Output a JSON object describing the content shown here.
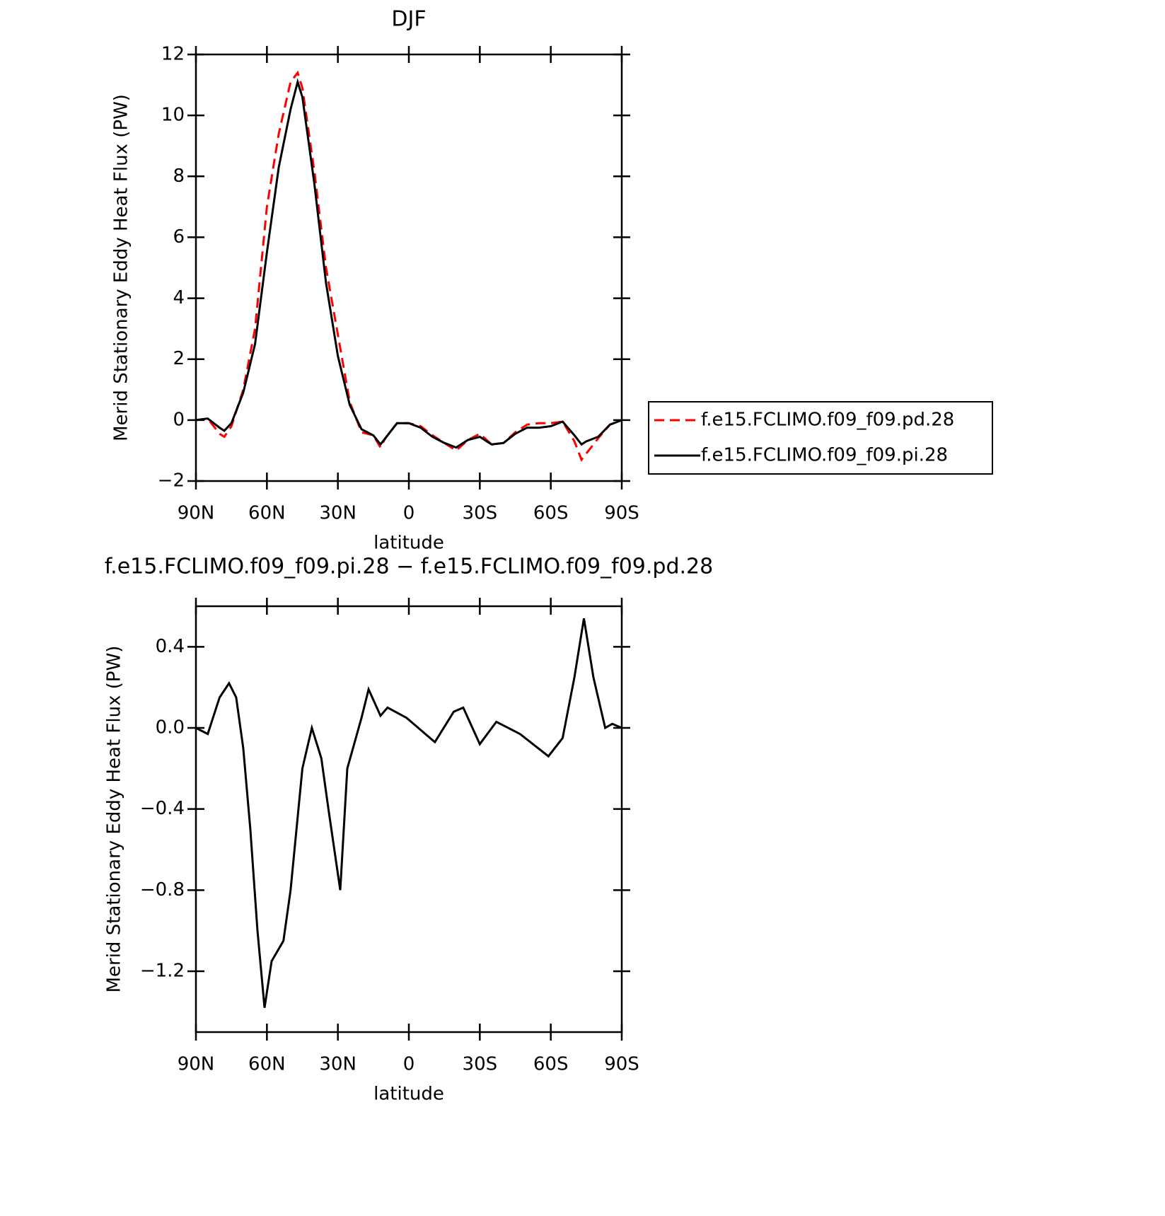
{
  "chart_data": [
    {
      "type": "line",
      "title": "DJF",
      "xlabel": "latitude",
      "ylabel": "Merid Stationary Eddy Heat Flux (PW)",
      "x": [
        90,
        85,
        80,
        78,
        75,
        70,
        65,
        60,
        55,
        50,
        47,
        45,
        40,
        35,
        30,
        25,
        20,
        15,
        12,
        10,
        5,
        0,
        -5,
        -10,
        -15,
        -20,
        -25,
        -30,
        -35,
        -40,
        -45,
        -50,
        -55,
        -60,
        -65,
        -70,
        -73,
        -75,
        -80,
        -85,
        -90
      ],
      "series": [
        {
          "name": "f.e15.FCLIMO.f09_f09.pd.28",
          "color": "#ff0000",
          "dash": true,
          "values": [
            0,
            0.05,
            -0.45,
            -0.55,
            -0.2,
            1.0,
            3.0,
            7.0,
            9.4,
            11.1,
            11.4,
            10.9,
            8.2,
            5.0,
            2.8,
            0.6,
            -0.4,
            -0.5,
            -0.9,
            -0.6,
            -0.1,
            -0.1,
            -0.2,
            -0.5,
            -0.75,
            -1.0,
            -0.65,
            -0.45,
            -0.8,
            -0.75,
            -0.4,
            -0.15,
            -0.1,
            -0.1,
            -0.05,
            -0.7,
            -1.3,
            -1.1,
            -0.6,
            -0.15,
            0
          ]
        },
        {
          "name": "f.e15.FCLIMO.f09_f09.pi.28",
          "color": "#000000",
          "dash": false,
          "values": [
            0,
            0.05,
            -0.25,
            -0.35,
            -0.1,
            0.9,
            2.5,
            5.5,
            8.3,
            10.2,
            11.1,
            10.6,
            7.8,
            4.5,
            2.1,
            0.5,
            -0.3,
            -0.5,
            -0.8,
            -0.6,
            -0.1,
            -0.1,
            -0.25,
            -0.55,
            -0.75,
            -0.9,
            -0.65,
            -0.55,
            -0.8,
            -0.75,
            -0.45,
            -0.25,
            -0.25,
            -0.2,
            -0.05,
            -0.5,
            -0.8,
            -0.7,
            -0.55,
            -0.15,
            0
          ]
        }
      ],
      "xlim": [
        90,
        -90
      ],
      "xticks": [
        {
          "value": 90,
          "label": "90N"
        },
        {
          "value": 60,
          "label": "60N"
        },
        {
          "value": 30,
          "label": "30N"
        },
        0,
        {
          "value": -30,
          "label": "30S"
        },
        {
          "value": -60,
          "label": "60S"
        },
        {
          "value": -90,
          "label": "90S"
        }
      ],
      "ylim": [
        -2,
        12
      ],
      "yticks": [
        -2,
        0,
        2,
        4,
        6,
        8,
        10,
        12
      ],
      "legend": "right"
    },
    {
      "type": "line",
      "title": "f.e15.FCLIMO.f09_f09.pi.28 − f.e15.FCLIMO.f09_f09.pd.28",
      "xlabel": "latitude",
      "ylabel": "Merid Stationary Eddy Heat Flux (PW)",
      "x": [
        90,
        85,
        80,
        76,
        73,
        70,
        67,
        64,
        61,
        58,
        53,
        50,
        45,
        41,
        37,
        34,
        29,
        26,
        20,
        17,
        12,
        9,
        1,
        -7,
        -11,
        -19,
        -23,
        -30,
        -37,
        -47,
        -59,
        -65,
        -70,
        -74,
        -78,
        -83,
        -86,
        -90
      ],
      "series": [
        {
          "color": "#000000",
          "dash": false,
          "values": [
            0,
            -0.03,
            0.15,
            0.22,
            0.15,
            -0.1,
            -0.5,
            -1.0,
            -1.38,
            -1.15,
            -1.05,
            -0.8,
            -0.2,
            0.0,
            -0.15,
            -0.4,
            -0.8,
            -0.2,
            0.05,
            0.19,
            0.06,
            0.1,
            0.05,
            -0.03,
            -0.07,
            0.08,
            0.1,
            -0.08,
            0.03,
            -0.03,
            -0.14,
            -0.05,
            0.25,
            0.54,
            0.25,
            0.0,
            0.02,
            0
          ]
        }
      ],
      "xlim": [
        90,
        -90
      ],
      "xticks": [
        {
          "value": 90,
          "label": "90N"
        },
        {
          "value": 60,
          "label": "60N"
        },
        {
          "value": 30,
          "label": "30N"
        },
        0,
        {
          "value": -30,
          "label": "30S"
        },
        {
          "value": -60,
          "label": "60S"
        },
        {
          "value": -90,
          "label": "90S"
        }
      ],
      "ylim": [
        -1.5,
        0.6
      ],
      "yticks": [
        -1.2,
        -0.8,
        -0.4,
        {
          "value": 0,
          "label": "0.0"
        },
        0.4
      ]
    }
  ]
}
